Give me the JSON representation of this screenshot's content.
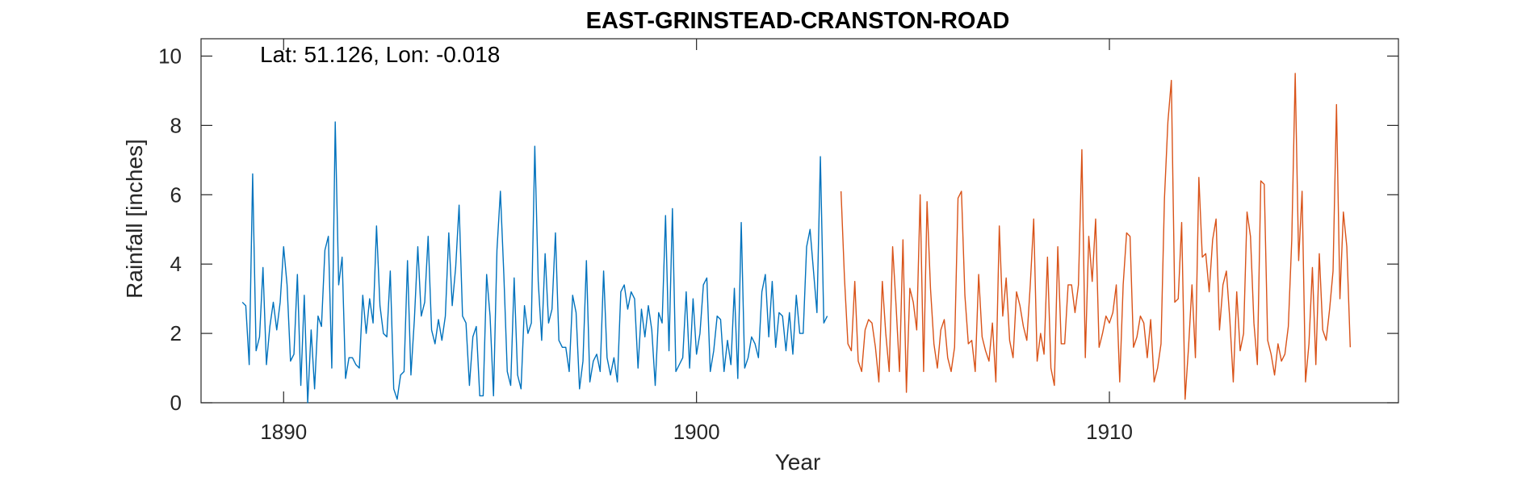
{
  "chart_data": {
    "type": "line",
    "title": "EAST-GRINSTEAD-CRANSTON-ROAD",
    "xlabel": "Year",
    "ylabel": "Rainfall [inches]",
    "annotation": "Lat: 51.126, Lon: -0.018",
    "xlim": [
      1888,
      1917
    ],
    "ylim": [
      0,
      10.5
    ],
    "x_ticks": [
      1890,
      1900,
      1910
    ],
    "x_tick_labels": [
      "1890",
      "1900",
      "1910"
    ],
    "y_ticks": [
      0,
      2,
      4,
      6,
      8,
      10
    ],
    "y_tick_labels": [
      "0",
      "2",
      "4",
      "6",
      "8",
      "10"
    ],
    "grid": false,
    "time_step": "monthly",
    "series": [
      {
        "color": "#0072BD",
        "x_start": 1889.0,
        "values": [
          2.9,
          2.8,
          1.1,
          6.6,
          1.5,
          1.9,
          3.9,
          1.1,
          2.2,
          2.9,
          2.1,
          2.9,
          4.5,
          3.4,
          1.2,
          1.4,
          3.7,
          0.5,
          3.1,
          0.0,
          2.1,
          0.4,
          2.5,
          2.2,
          4.4,
          4.8,
          1.0,
          8.1,
          3.4,
          4.2,
          0.7,
          1.3,
          1.3,
          1.1,
          1.0,
          3.1,
          2.0,
          3.0,
          2.3,
          5.1,
          2.8,
          2.0,
          1.9,
          3.8,
          0.4,
          0.1,
          0.8,
          0.9,
          4.1,
          0.8,
          2.4,
          4.5,
          2.5,
          2.9,
          4.8,
          2.1,
          1.7,
          2.4,
          1.8,
          2.5,
          4.9,
          2.8,
          3.9,
          5.7,
          2.5,
          2.3,
          0.5,
          1.9,
          2.2,
          0.2,
          0.2,
          3.7,
          2.5,
          0.2,
          4.4,
          6.1,
          3.7,
          0.9,
          0.5,
          3.6,
          0.8,
          0.4,
          2.8,
          2.0,
          2.3,
          7.4,
          3.5,
          1.8,
          4.3,
          2.3,
          2.7,
          4.9,
          1.8,
          1.6,
          1.6,
          0.9,
          3.1,
          2.6,
          0.4,
          1.2,
          4.1,
          0.6,
          1.2,
          1.4,
          0.9,
          3.8,
          1.3,
          0.8,
          1.3,
          0.6,
          3.2,
          3.4,
          2.7,
          3.2,
          3.0,
          1.0,
          2.7,
          1.9,
          2.8,
          2.1,
          0.5,
          2.6,
          2.3,
          5.4,
          1.5,
          5.6,
          0.9,
          1.1,
          1.3,
          3.2,
          1.0,
          3.0,
          1.4,
          2.0,
          3.4,
          3.6,
          0.9,
          1.5,
          2.5,
          2.4,
          0.9,
          1.8,
          1.1,
          3.3,
          0.7,
          5.2,
          1.0,
          1.3,
          1.9,
          1.7,
          1.3,
          3.2,
          3.7,
          1.9,
          3.5,
          1.6,
          2.6,
          2.5,
          1.5,
          2.6,
          1.4,
          3.1,
          2.0,
          2.0,
          4.5,
          5.0,
          3.8,
          2.6,
          7.1,
          2.3,
          2.5
        ]
      },
      {
        "color": "#D95319",
        "x_start": 1903.5,
        "values": [
          6.1,
          3.6,
          1.7,
          1.5,
          3.5,
          1.2,
          0.9,
          2.1,
          2.4,
          2.3,
          1.6,
          0.6,
          3.5,
          2.0,
          0.9,
          4.5,
          2.8,
          0.9,
          4.7,
          0.3,
          3.3,
          2.9,
          2.1,
          6.0,
          0.9,
          5.8,
          3.3,
          1.7,
          1.0,
          2.1,
          2.4,
          1.3,
          0.9,
          1.6,
          5.9,
          6.1,
          3.1,
          1.7,
          1.8,
          0.9,
          3.7,
          1.9,
          1.5,
          1.2,
          2.3,
          0.6,
          5.1,
          2.5,
          3.6,
          1.8,
          1.3,
          3.2,
          2.8,
          2.2,
          1.8,
          3.4,
          5.3,
          1.2,
          2.0,
          1.4,
          4.2,
          1.0,
          0.5,
          4.5,
          1.7,
          1.7,
          3.4,
          3.4,
          2.6,
          3.4,
          7.3,
          1.3,
          4.8,
          3.5,
          5.3,
          1.6,
          2.0,
          2.5,
          2.3,
          2.6,
          3.4,
          0.6,
          3.4,
          4.9,
          4.8,
          1.6,
          1.9,
          2.5,
          2.3,
          1.3,
          2.4,
          0.6,
          1.0,
          1.7,
          5.9,
          8.1,
          9.3,
          2.9,
          3.0,
          5.2,
          0.1,
          1.6,
          3.4,
          1.3,
          6.5,
          4.2,
          4.3,
          3.2,
          4.7,
          5.3,
          2.1,
          3.4,
          3.8,
          2.4,
          0.6,
          3.2,
          1.5,
          2.0,
          5.5,
          4.8,
          2.3,
          1.1,
          6.4,
          6.3,
          1.8,
          1.4,
          0.8,
          1.7,
          1.2,
          1.4,
          2.2,
          4.7,
          9.5,
          4.1,
          6.1,
          0.6,
          1.7,
          3.9,
          1.1,
          4.3,
          2.1,
          1.8,
          2.7,
          3.8,
          8.6,
          3.0,
          5.5,
          4.5,
          1.6
        ]
      }
    ]
  }
}
